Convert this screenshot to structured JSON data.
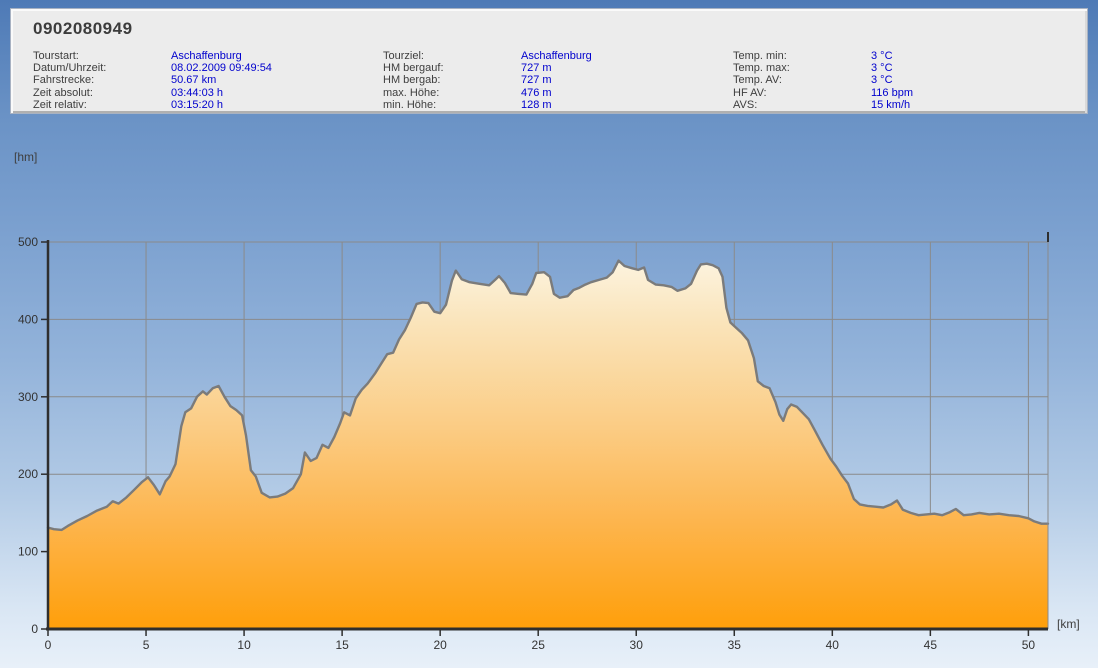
{
  "window": {
    "title": "0902080949"
  },
  "header": {
    "col1": [
      {
        "label": "Tourstart:",
        "value": "Aschaffenburg"
      },
      {
        "label": "Datum/Uhrzeit:",
        "value": "08.02.2009 09:49:54"
      },
      {
        "label": "Fahrstrecke:",
        "value": "50.67 km"
      },
      {
        "label": "Zeit absolut:",
        "value": "03:44:03 h"
      },
      {
        "label": "Zeit relativ:",
        "value": "03:15:20 h"
      }
    ],
    "col2": [
      {
        "label": "Tourziel:",
        "value": "Aschaffenburg"
      },
      {
        "label": "HM bergauf:",
        "value": "727 m"
      },
      {
        "label": "HM bergab:",
        "value": "727 m"
      },
      {
        "label": "max. Höhe:",
        "value": "476 m"
      },
      {
        "label": "min. Höhe:",
        "value": "128 m"
      }
    ],
    "col3": [
      {
        "label": "Temp. min:",
        "value": "3 °C"
      },
      {
        "label": "Temp. max:",
        "value": "3 °C"
      },
      {
        "label": "Temp. AV:",
        "value": "3 °C"
      },
      {
        "label": "HF AV:",
        "value": "116 bpm"
      },
      {
        "label": "AVS:",
        "value": "15 km/h"
      }
    ]
  },
  "chart_data": {
    "type": "area",
    "title": "",
    "xlabel": "[km]",
    "ylabel": "[hm]",
    "xlim": [
      0,
      51
    ],
    "ylim": [
      0,
      500
    ],
    "xticks": [
      0,
      5,
      10,
      15,
      20,
      25,
      30,
      35,
      40,
      45,
      50
    ],
    "yticks": [
      0,
      100,
      200,
      300,
      400,
      500
    ],
    "grid": true,
    "legend": false,
    "series": [
      {
        "name": "elevation-profile",
        "x": [
          0,
          0.3,
          0.7,
          1,
          1.5,
          2,
          2.5,
          3,
          3.3,
          3.6,
          4,
          4.4,
          4.8,
          5.1,
          5.4,
          5.7,
          6,
          6.2,
          6.5,
          6.8,
          7,
          7.3,
          7.6,
          7.9,
          8.1,
          8.4,
          8.7,
          9,
          9.3,
          9.6,
          9.9,
          10.1,
          10.35,
          10.6,
          10.9,
          11.3,
          11.7,
          12.1,
          12.5,
          12.9,
          13.1,
          13.4,
          13.7,
          14,
          14.3,
          14.6,
          14.9,
          15.1,
          15.4,
          15.7,
          16,
          16.3,
          16.7,
          17,
          17.3,
          17.6,
          17.9,
          18.2,
          18.5,
          18.8,
          19.1,
          19.4,
          19.7,
          20,
          20.3,
          20.6,
          20.8,
          21.1,
          21.5,
          22,
          22.5,
          22.8,
          23,
          23.3,
          23.6,
          24,
          24.4,
          24.7,
          24.9,
          25.3,
          25.6,
          25.8,
          26.1,
          26.5,
          26.8,
          27.1,
          27.4,
          27.7,
          28.1,
          28.5,
          28.8,
          29.1,
          29.4,
          29.8,
          30.1,
          30.4,
          30.6,
          31,
          31.4,
          31.8,
          32.1,
          32.5,
          32.8,
          33.1,
          33.3,
          33.6,
          33.9,
          34.2,
          34.4,
          34.6,
          34.8,
          35.1,
          35.4,
          35.7,
          36,
          36.2,
          36.5,
          36.8,
          37.1,
          37.3,
          37.5,
          37.7,
          37.9,
          38.2,
          38.5,
          38.8,
          39.1,
          39.5,
          39.9,
          40.2,
          40.5,
          40.8,
          41.1,
          41.4,
          41.8,
          42.2,
          42.6,
          43,
          43.3,
          43.6,
          44,
          44.4,
          44.8,
          45.2,
          45.6,
          46,
          46.3,
          46.7,
          47.1,
          47.5,
          48,
          48.5,
          49,
          49.5,
          50,
          50.3,
          50.67
        ],
        "y": [
          131,
          129,
          128,
          133,
          140,
          146,
          153,
          158,
          165,
          162,
          170,
          180,
          190,
          196,
          186,
          174,
          191,
          197,
          213,
          262,
          280,
          285,
          300,
          307,
          303,
          311,
          314,
          300,
          288,
          283,
          276,
          250,
          205,
          197,
          176,
          170,
          171,
          175,
          182,
          200,
          228,
          217,
          221,
          238,
          234,
          248,
          266,
          280,
          276,
          298,
          309,
          317,
          331,
          343,
          355,
          357,
          374,
          386,
          402,
          420,
          422,
          421,
          410,
          408,
          419,
          450,
          463,
          452,
          448,
          446,
          444,
          451,
          456,
          447,
          434,
          433,
          432,
          446,
          460,
          461,
          455,
          433,
          428,
          430,
          438,
          441,
          445,
          448,
          451,
          454,
          461,
          476,
          469,
          466,
          464,
          467,
          451,
          445,
          444,
          442,
          437,
          440,
          446,
          463,
          471,
          472,
          470,
          466,
          455,
          415,
          396,
          389,
          382,
          373,
          350,
          320,
          314,
          311,
          293,
          277,
          269,
          284,
          290,
          287,
          279,
          271,
          257,
          238,
          220,
          210,
          198,
          188,
          168,
          161,
          159,
          158,
          157,
          161,
          166,
          154,
          150,
          147,
          148,
          149,
          147,
          151,
          155,
          147,
          148,
          150,
          148,
          149,
          147,
          146,
          143,
          139,
          136
        ]
      }
    ],
    "colors": {
      "area_top": "#fdf8ea",
      "area_mid1": "#fae3b8",
      "area_mid2": "#fbcc84",
      "area_mid3": "#fdb54e",
      "area_bottom": "#ff9f0a",
      "line": "#7b7b7b",
      "grid": "#8a8a8a",
      "axis": "#2e2e2e",
      "tick_text": "#333333",
      "value_text": "#0000cd",
      "label_text": "#3e3e3e"
    }
  }
}
